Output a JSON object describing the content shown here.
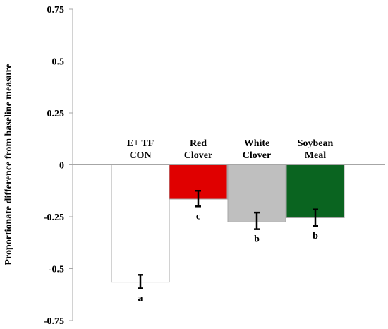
{
  "chart_data": {
    "type": "bar",
    "title": "",
    "xlabel": "",
    "ylabel": "Proportionate difference from baseline measure",
    "ylim": [
      -0.75,
      0.75
    ],
    "yticks": [
      0.75,
      0.5,
      0.25,
      0,
      -0.25,
      -0.5,
      -0.75
    ],
    "ytick_labels": [
      "0.75",
      "0.5",
      "0.25",
      "0",
      "-0.25",
      "-0.5",
      "-0.75"
    ],
    "grid": false,
    "legend": "none",
    "categories": [
      [
        "E+ TF",
        "CON"
      ],
      [
        "Red",
        "Clover"
      ],
      [
        "White",
        "Clover"
      ],
      [
        "Soybean",
        "Meal"
      ]
    ],
    "values": [
      -0.565,
      -0.165,
      -0.275,
      -0.255
    ],
    "error_bars": [
      [
        -0.595,
        -0.53
      ],
      [
        -0.2,
        -0.125
      ],
      [
        -0.31,
        -0.23
      ],
      [
        -0.295,
        -0.215
      ]
    ],
    "significance_letters": [
      "a",
      "c",
      "b",
      "b"
    ],
    "colors": [
      "#ffffff",
      "#e00000",
      "#bfbfbf",
      "#0a6420"
    ],
    "edge_colors": [
      "#a6a6a6",
      "#a6a6a6",
      "#a6a6a6",
      "#a6a6a6"
    ]
  }
}
